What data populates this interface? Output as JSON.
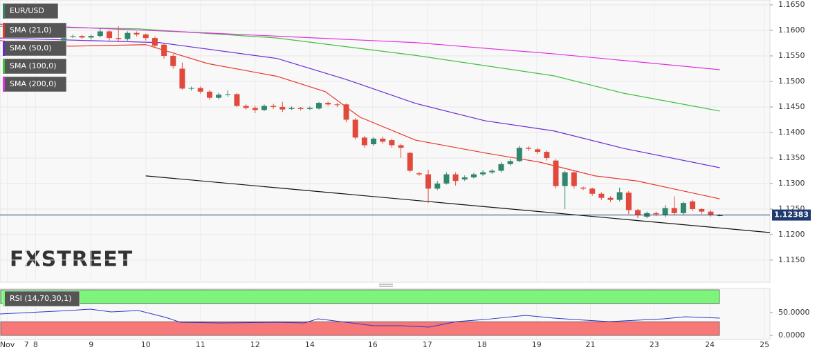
{
  "chart_data": [
    {
      "type": "candlestick",
      "symbol": "EUR/USD",
      "watermark": "FXSTREET",
      "up_color": "#32866b",
      "down_color": "#e1493c",
      "doji_color": "#222222",
      "open": [
        1.1578,
        1.1588,
        1.1589,
        1.1586,
        1.1589,
        1.1598,
        1.1585,
        1.1583,
        1.1595,
        1.1592,
        1.1585,
        1.1572,
        1.155,
        1.1525,
        1.1486,
        1.1487,
        1.148,
        1.1468,
        1.1474,
        1.1475,
        1.1452,
        1.1448,
        1.1444,
        1.1452,
        1.145,
        1.1446,
        1.1448,
        1.1446,
        1.1447,
        1.1458,
        1.1455,
        1.1455,
        1.1425,
        1.139,
        1.1377,
        1.1388,
        1.1385,
        1.1375,
        1.136,
        1.132,
        1.1318,
        1.129,
        1.13,
        1.1318,
        1.1308,
        1.1312,
        1.1318,
        1.1322,
        1.1325,
        1.1338,
        1.1344,
        1.137,
        1.1367,
        1.1362,
        1.1345,
        1.1295,
        1.1322,
        1.1292,
        1.129,
        1.128,
        1.1272,
        1.1268,
        1.1282,
        1.1248,
        1.1235,
        1.1242,
        1.1238,
        1.1252,
        1.1242,
        1.1265,
        1.125,
        1.1245,
        1.1238
      ],
      "high": [
        1.1592,
        1.1592,
        1.1591,
        1.1592,
        1.1605,
        1.16,
        1.1608,
        1.1598,
        1.1598,
        1.1594,
        1.1588,
        1.1575,
        1.1553,
        1.1537,
        1.149,
        1.149,
        1.1483,
        1.1478,
        1.1483,
        1.1477,
        1.1455,
        1.1452,
        1.1455,
        1.1456,
        1.146,
        1.1451,
        1.145,
        1.1451,
        1.146,
        1.1461,
        1.1458,
        1.1457,
        1.1428,
        1.1393,
        1.1391,
        1.1392,
        1.1388,
        1.1378,
        1.1362,
        1.1323,
        1.1327,
        1.1305,
        1.1322,
        1.1322,
        1.1316,
        1.1321,
        1.1326,
        1.1328,
        1.1342,
        1.1348,
        1.1374,
        1.1373,
        1.137,
        1.1365,
        1.1348,
        1.1325,
        1.1325,
        1.1294,
        1.1292,
        1.1283,
        1.1275,
        1.1292,
        1.1285,
        1.125,
        1.1245,
        1.1245,
        1.1258,
        1.1275,
        1.1265,
        1.1268,
        1.1252,
        1.1248,
        1.124
      ],
      "low": [
        1.1572,
        1.1585,
        1.1583,
        1.1582,
        1.1586,
        1.158,
        1.1578,
        1.158,
        1.1588,
        1.158,
        1.1565,
        1.1545,
        1.1525,
        1.1484,
        1.1482,
        1.1476,
        1.1464,
        1.1465,
        1.147,
        1.145,
        1.1445,
        1.1438,
        1.1442,
        1.1446,
        1.144,
        1.1444,
        1.1443,
        1.1444,
        1.1445,
        1.1452,
        1.145,
        1.142,
        1.1386,
        1.137,
        1.1374,
        1.1378,
        1.137,
        1.135,
        1.1322,
        1.1315,
        1.1262,
        1.1287,
        1.1298,
        1.1296,
        1.1305,
        1.131,
        1.1315,
        1.1319,
        1.1322,
        1.1335,
        1.1342,
        1.1364,
        1.1358,
        1.1345,
        1.129,
        1.125,
        1.129,
        1.1287,
        1.1276,
        1.1268,
        1.1264,
        1.1265,
        1.124,
        1.1232,
        1.1232,
        1.1236,
        1.1234,
        1.1238,
        1.1238,
        1.1246,
        1.124,
        1.1235,
        1.1236
      ],
      "close": [
        1.1588,
        1.1589,
        1.1586,
        1.1589,
        1.1598,
        1.1585,
        1.1583,
        1.1595,
        1.1592,
        1.1585,
        1.157,
        1.155,
        1.153,
        1.1486,
        1.1487,
        1.148,
        1.1468,
        1.1474,
        1.1475,
        1.1452,
        1.1448,
        1.1444,
        1.1452,
        1.145,
        1.1445,
        1.1448,
        1.1446,
        1.1448,
        1.1458,
        1.1455,
        1.1454,
        1.1425,
        1.139,
        1.1375,
        1.1388,
        1.1382,
        1.1375,
        1.137,
        1.1325,
        1.1318,
        1.129,
        1.13,
        1.1318,
        1.1305,
        1.1312,
        1.1318,
        1.1322,
        1.1325,
        1.1338,
        1.1344,
        1.137,
        1.1368,
        1.1362,
        1.135,
        1.1295,
        1.1322,
        1.1295,
        1.129,
        1.128,
        1.1272,
        1.1268,
        1.1283,
        1.1248,
        1.1238,
        1.1242,
        1.124,
        1.1252,
        1.1242,
        1.1262,
        1.125,
        1.1245,
        1.1238,
        1.1238
      ],
      "series": [
        {
          "name": "SMA (21,0)",
          "color": "#e8372c",
          "x": [
            -7,
            0.6,
            9,
            15.8,
            23.4,
            28.7,
            32.5,
            38.6,
            46.2,
            52.2,
            58.3,
            62.9,
            72
          ],
          "values": [
            1.158,
            1.1569,
            1.1572,
            1.1535,
            1.151,
            1.148,
            1.143,
            1.1385,
            1.136,
            1.1342,
            1.1315,
            1.1305,
            1.127
          ]
        },
        {
          "name": "SMA (50,0)",
          "color": "#6a2bd6",
          "x": [
            -7,
            10.5,
            23.4,
            30.97,
            38.6,
            46.2,
            53.8,
            61.4,
            72
          ],
          "values": [
            1.1585,
            1.1576,
            1.1545,
            1.1504,
            1.1457,
            1.1423,
            1.1403,
            1.1369,
            1.1331
          ]
        },
        {
          "name": "SMA (100,0)",
          "color": "#3cc23c",
          "x": [
            -7,
            8.2,
            23.4,
            38.6,
            53.8,
            61.4,
            72
          ],
          "values": [
            1.1608,
            1.1603,
            1.1585,
            1.1551,
            1.1511,
            1.1477,
            1.1442
          ]
        },
        {
          "name": "SMA (200,0)",
          "color": "#e030e0",
          "x": [
            -7,
            15.8,
            38.6,
            53.8,
            72
          ],
          "values": [
            1.1612,
            1.1595,
            1.1576,
            1.1554,
            1.1523
          ]
        }
      ],
      "trendline": {
        "x": [
          9,
          77.5
        ],
        "values": [
          1.1315,
          1.1204
        ]
      },
      "last_price": {
        "value": 1.12383,
        "label": "1.12383",
        "color": "#1f3a6e"
      },
      "xlim": [
        -7,
        77.5
      ],
      "ylim": [
        1.1108,
        1.16595
      ],
      "yticks": [
        {
          "value": 1.165,
          "label": "1.1650"
        },
        {
          "value": 1.16,
          "label": "1.1600"
        },
        {
          "value": 1.155,
          "label": "1.1550"
        },
        {
          "value": 1.15,
          "label": "1.1500"
        },
        {
          "value": 1.145,
          "label": "1.1450"
        },
        {
          "value": 1.14,
          "label": "1.1400"
        },
        {
          "value": 1.135,
          "label": "1.1350"
        },
        {
          "value": 1.13,
          "label": "1.1300"
        },
        {
          "value": 1.125,
          "label": "1.1250"
        },
        {
          "value": 1.12,
          "label": "1.1200"
        },
        {
          "value": 1.115,
          "label": "1.1150"
        }
      ],
      "xticks": [
        {
          "value": -6.2,
          "label": "Nov"
        },
        {
          "value": -4.1,
          "label": "7"
        },
        {
          "value": -3.1,
          "label": "8"
        },
        {
          "value": 3.0,
          "label": "9"
        },
        {
          "value": 9.0,
          "label": "10"
        },
        {
          "value": 15.0,
          "label": "11"
        },
        {
          "value": 21.0,
          "label": "12"
        },
        {
          "value": 27.0,
          "label": "14"
        },
        {
          "value": 33.9,
          "label": "16"
        },
        {
          "value": 39.9,
          "label": "17"
        },
        {
          "value": 45.9,
          "label": "18"
        },
        {
          "value": 51.9,
          "label": "19"
        },
        {
          "value": 57.8,
          "label": "21"
        },
        {
          "value": 64.8,
          "label": "23"
        },
        {
          "value": 70.9,
          "label": "24"
        },
        {
          "value": 76.9,
          "label": "25"
        }
      ],
      "grid": true
    },
    {
      "type": "line",
      "name": "RSI (14,70,30,1)",
      "color": "#2f35c8",
      "x": [
        -7,
        0.6,
        2.9,
        5.2,
        8.2,
        11.2,
        12.8,
        17.3,
        23.4,
        26.4,
        27.9,
        30.97,
        34,
        37,
        40.1,
        43.1,
        46.2,
        50.7,
        53.8,
        56,
        59.8,
        62.9,
        65.9,
        68.2,
        72
      ],
      "values": [
        47,
        54.5,
        57.6,
        51.5,
        54.5,
        39.4,
        28.8,
        27.3,
        28.8,
        27.3,
        36.4,
        28.8,
        21.2,
        21.2,
        18.2,
        30.3,
        34.8,
        43.9,
        37.9,
        34.8,
        30.3,
        33.3,
        36.4,
        40.9,
        37.9
      ],
      "zones": [
        {
          "range": [
            70,
            100
          ],
          "color": "#7df57d"
        },
        {
          "range": [
            0,
            30
          ],
          "color": "#f77878"
        }
      ],
      "ylim": [
        -9,
        103
      ],
      "yticks": [
        {
          "value": 50,
          "label": "50.0000"
        },
        {
          "value": 0,
          "label": "0.0000"
        }
      ]
    }
  ]
}
